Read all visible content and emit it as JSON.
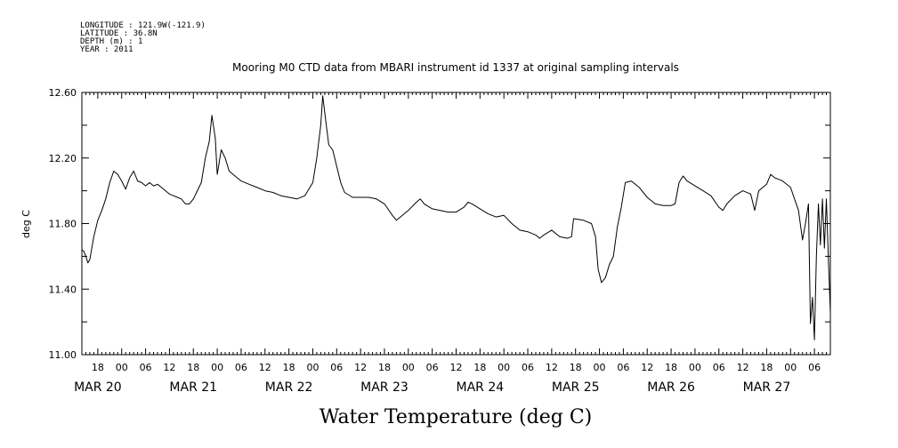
{
  "metadata": {
    "longitude": "LONGITUDE : 121.9W(-121.9)",
    "latitude": "LATITUDE : 36.8N",
    "depth": "DEPTH (m) : 1",
    "year": "YEAR : 2011"
  },
  "chart_data": {
    "type": "line",
    "title": "Mooring M0 CTD data from MBARI instrument id 1337 at original sampling intervals",
    "xlabel": "Water Temperature (deg C)",
    "ylabel": "deg C",
    "ylim": [
      11.0,
      12.6
    ],
    "yticks": [
      "11.00",
      "11.40",
      "11.80",
      "12.20",
      "12.60"
    ],
    "xlim": [
      "2011-03-19T14:00",
      "2011-03-27T10:00"
    ],
    "hour_ticks": [
      {
        "t": "2011-03-19T18:00",
        "label": "18"
      },
      {
        "t": "2011-03-20T00:00",
        "label": "00"
      },
      {
        "t": "2011-03-20T06:00",
        "label": "06"
      },
      {
        "t": "2011-03-20T12:00",
        "label": "12"
      },
      {
        "t": "2011-03-20T18:00",
        "label": "18"
      },
      {
        "t": "2011-03-21T00:00",
        "label": "00"
      },
      {
        "t": "2011-03-21T06:00",
        "label": "06"
      },
      {
        "t": "2011-03-21T12:00",
        "label": "12"
      },
      {
        "t": "2011-03-21T18:00",
        "label": "18"
      },
      {
        "t": "2011-03-22T00:00",
        "label": "00"
      },
      {
        "t": "2011-03-22T06:00",
        "label": "06"
      },
      {
        "t": "2011-03-22T12:00",
        "label": "12"
      },
      {
        "t": "2011-03-22T18:00",
        "label": "18"
      },
      {
        "t": "2011-03-23T00:00",
        "label": "00"
      },
      {
        "t": "2011-03-23T06:00",
        "label": "06"
      },
      {
        "t": "2011-03-23T12:00",
        "label": "12"
      },
      {
        "t": "2011-03-23T18:00",
        "label": "18"
      },
      {
        "t": "2011-03-24T00:00",
        "label": "00"
      },
      {
        "t": "2011-03-24T06:00",
        "label": "06"
      },
      {
        "t": "2011-03-24T12:00",
        "label": "12"
      },
      {
        "t": "2011-03-24T18:00",
        "label": "18"
      },
      {
        "t": "2011-03-25T00:00",
        "label": "00"
      },
      {
        "t": "2011-03-25T06:00",
        "label": "06"
      },
      {
        "t": "2011-03-25T12:00",
        "label": "12"
      },
      {
        "t": "2011-03-25T18:00",
        "label": "18"
      },
      {
        "t": "2011-03-26T00:00",
        "label": "00"
      },
      {
        "t": "2011-03-26T06:00",
        "label": "06"
      },
      {
        "t": "2011-03-26T12:00",
        "label": "12"
      },
      {
        "t": "2011-03-26T18:00",
        "label": "18"
      },
      {
        "t": "2011-03-27T00:00",
        "label": "00"
      },
      {
        "t": "2011-03-27T06:00",
        "label": "06"
      }
    ],
    "day_labels": [
      {
        "t": "2011-03-19T18:00",
        "label": "MAR 20"
      },
      {
        "t": "2011-03-20T18:00",
        "label": "MAR 21"
      },
      {
        "t": "2011-03-21T18:00",
        "label": "MAR 22"
      },
      {
        "t": "2011-03-22T18:00",
        "label": "MAR 23"
      },
      {
        "t": "2011-03-23T18:00",
        "label": "MAR 24"
      },
      {
        "t": "2011-03-24T18:00",
        "label": "MAR 25"
      },
      {
        "t": "2011-03-25T18:00",
        "label": "MAR 26"
      },
      {
        "t": "2011-03-26T18:00",
        "label": "MAR 27"
      }
    ],
    "series": [
      {
        "color": "#000000",
        "points": [
          [
            "2011-03-19T14:00",
            11.64
          ],
          [
            "2011-03-19T14:30",
            11.63
          ],
          [
            "2011-03-19T15:00",
            11.6
          ],
          [
            "2011-03-19T15:30",
            11.56
          ],
          [
            "2011-03-19T16:00",
            11.58
          ],
          [
            "2011-03-19T17:00",
            11.72
          ],
          [
            "2011-03-19T18:00",
            11.82
          ],
          [
            "2011-03-19T19:00",
            11.88
          ],
          [
            "2011-03-19T20:00",
            11.95
          ],
          [
            "2011-03-19T21:00",
            12.05
          ],
          [
            "2011-03-19T22:00",
            12.12
          ],
          [
            "2011-03-19T23:00",
            12.1
          ],
          [
            "2011-03-20T00:00",
            12.06
          ],
          [
            "2011-03-20T01:00",
            12.01
          ],
          [
            "2011-03-20T02:00",
            12.08
          ],
          [
            "2011-03-20T03:00",
            12.12
          ],
          [
            "2011-03-20T04:00",
            12.06
          ],
          [
            "2011-03-20T05:00",
            12.05
          ],
          [
            "2011-03-20T06:00",
            12.03
          ],
          [
            "2011-03-20T07:00",
            12.05
          ],
          [
            "2011-03-20T08:00",
            12.03
          ],
          [
            "2011-03-20T09:00",
            12.04
          ],
          [
            "2011-03-20T10:00",
            12.02
          ],
          [
            "2011-03-20T11:00",
            12.0
          ],
          [
            "2011-03-20T12:00",
            11.98
          ],
          [
            "2011-03-20T13:00",
            11.97
          ],
          [
            "2011-03-20T14:00",
            11.96
          ],
          [
            "2011-03-20T15:00",
            11.95
          ],
          [
            "2011-03-20T16:00",
            11.92
          ],
          [
            "2011-03-20T17:00",
            11.92
          ],
          [
            "2011-03-20T18:00",
            11.95
          ],
          [
            "2011-03-20T19:00",
            12.0
          ],
          [
            "2011-03-20T20:00",
            12.05
          ],
          [
            "2011-03-20T21:00",
            12.2
          ],
          [
            "2011-03-20T22:00",
            12.3
          ],
          [
            "2011-03-20T22:40",
            12.46
          ],
          [
            "2011-03-20T23:30",
            12.32
          ],
          [
            "2011-03-21T00:00",
            12.1
          ],
          [
            "2011-03-21T01:00",
            12.25
          ],
          [
            "2011-03-21T02:00",
            12.2
          ],
          [
            "2011-03-21T03:00",
            12.12
          ],
          [
            "2011-03-21T04:00",
            12.1
          ],
          [
            "2011-03-21T06:00",
            12.06
          ],
          [
            "2011-03-21T08:00",
            12.04
          ],
          [
            "2011-03-21T10:00",
            12.02
          ],
          [
            "2011-03-21T12:00",
            12.0
          ],
          [
            "2011-03-21T14:00",
            11.99
          ],
          [
            "2011-03-21T16:00",
            11.97
          ],
          [
            "2011-03-21T18:00",
            11.96
          ],
          [
            "2011-03-21T20:00",
            11.95
          ],
          [
            "2011-03-21T22:00",
            11.97
          ],
          [
            "2011-03-22T00:00",
            12.05
          ],
          [
            "2011-03-22T01:00",
            12.2
          ],
          [
            "2011-03-22T02:00",
            12.4
          ],
          [
            "2011-03-22T02:30",
            12.58
          ],
          [
            "2011-03-22T03:30",
            12.38
          ],
          [
            "2011-03-22T04:00",
            12.28
          ],
          [
            "2011-03-22T05:00",
            12.25
          ],
          [
            "2011-03-22T06:00",
            12.15
          ],
          [
            "2011-03-22T07:00",
            12.05
          ],
          [
            "2011-03-22T08:00",
            11.99
          ],
          [
            "2011-03-22T10:00",
            11.96
          ],
          [
            "2011-03-22T12:00",
            11.96
          ],
          [
            "2011-03-22T14:00",
            11.96
          ],
          [
            "2011-03-22T16:00",
            11.95
          ],
          [
            "2011-03-22T18:00",
            11.92
          ],
          [
            "2011-03-22T20:00",
            11.85
          ],
          [
            "2011-03-22T21:00",
            11.82
          ],
          [
            "2011-03-22T22:00",
            11.84
          ],
          [
            "2011-03-23T00:00",
            11.88
          ],
          [
            "2011-03-23T02:00",
            11.93
          ],
          [
            "2011-03-23T03:00",
            11.95
          ],
          [
            "2011-03-23T04:00",
            11.92
          ],
          [
            "2011-03-23T06:00",
            11.89
          ],
          [
            "2011-03-23T08:00",
            11.88
          ],
          [
            "2011-03-23T10:00",
            11.87
          ],
          [
            "2011-03-23T12:00",
            11.87
          ],
          [
            "2011-03-23T14:00",
            11.9
          ],
          [
            "2011-03-23T15:00",
            11.93
          ],
          [
            "2011-03-23T16:00",
            11.92
          ],
          [
            "2011-03-23T18:00",
            11.89
          ],
          [
            "2011-03-23T20:00",
            11.86
          ],
          [
            "2011-03-23T22:00",
            11.84
          ],
          [
            "2011-03-24T00:00",
            11.85
          ],
          [
            "2011-03-24T02:00",
            11.8
          ],
          [
            "2011-03-24T04:00",
            11.76
          ],
          [
            "2011-03-24T06:00",
            11.75
          ],
          [
            "2011-03-24T08:00",
            11.73
          ],
          [
            "2011-03-24T09:00",
            11.71
          ],
          [
            "2011-03-24T10:00",
            11.73
          ],
          [
            "2011-03-24T12:00",
            11.76
          ],
          [
            "2011-03-24T14:00",
            11.72
          ],
          [
            "2011-03-24T16:00",
            11.71
          ],
          [
            "2011-03-24T17:00",
            11.72
          ],
          [
            "2011-03-24T17:30",
            11.83
          ],
          [
            "2011-03-24T20:00",
            11.82
          ],
          [
            "2011-03-24T22:00",
            11.8
          ],
          [
            "2011-03-24T23:00",
            11.72
          ],
          [
            "2011-03-24T23:40",
            11.52
          ],
          [
            "2011-03-25T00:30",
            11.44
          ],
          [
            "2011-03-25T01:30",
            11.47
          ],
          [
            "2011-03-25T02:30",
            11.55
          ],
          [
            "2011-03-25T03:30",
            11.6
          ],
          [
            "2011-03-25T04:30",
            11.78
          ],
          [
            "2011-03-25T05:30",
            11.9
          ],
          [
            "2011-03-25T06:30",
            12.05
          ],
          [
            "2011-03-25T08:00",
            12.06
          ],
          [
            "2011-03-25T10:00",
            12.02
          ],
          [
            "2011-03-25T12:00",
            11.96
          ],
          [
            "2011-03-25T14:00",
            11.92
          ],
          [
            "2011-03-25T16:00",
            11.91
          ],
          [
            "2011-03-25T18:00",
            11.91
          ],
          [
            "2011-03-25T19:00",
            11.92
          ],
          [
            "2011-03-25T20:00",
            12.05
          ],
          [
            "2011-03-25T21:00",
            12.09
          ],
          [
            "2011-03-25T22:00",
            12.06
          ],
          [
            "2011-03-26T00:00",
            12.03
          ],
          [
            "2011-03-26T02:00",
            12.0
          ],
          [
            "2011-03-26T04:00",
            11.97
          ],
          [
            "2011-03-26T06:00",
            11.9
          ],
          [
            "2011-03-26T07:00",
            11.88
          ],
          [
            "2011-03-26T08:00",
            11.92
          ],
          [
            "2011-03-26T10:00",
            11.97
          ],
          [
            "2011-03-26T12:00",
            12.0
          ],
          [
            "2011-03-26T14:00",
            11.98
          ],
          [
            "2011-03-26T15:00",
            11.88
          ],
          [
            "2011-03-26T16:00",
            12.0
          ],
          [
            "2011-03-26T18:00",
            12.04
          ],
          [
            "2011-03-26T19:00",
            12.1
          ],
          [
            "2011-03-26T20:00",
            12.08
          ],
          [
            "2011-03-26T22:00",
            12.06
          ],
          [
            "2011-03-27T00:00",
            12.02
          ],
          [
            "2011-03-27T01:00",
            11.95
          ],
          [
            "2011-03-27T02:00",
            11.88
          ],
          [
            "2011-03-27T03:00",
            11.7
          ],
          [
            "2011-03-27T03:45",
            11.8
          ],
          [
            "2011-03-27T04:30",
            11.92
          ],
          [
            "2011-03-27T05:00",
            11.19
          ],
          [
            "2011-03-27T05:30",
            11.35
          ],
          [
            "2011-03-27T06:00",
            11.09
          ],
          [
            "2011-03-27T06:30",
            11.6
          ],
          [
            "2011-03-27T07:00",
            11.92
          ],
          [
            "2011-03-27T07:30",
            11.67
          ],
          [
            "2011-03-27T08:00",
            11.95
          ],
          [
            "2011-03-27T08:30",
            11.65
          ],
          [
            "2011-03-27T09:00",
            11.95
          ],
          [
            "2011-03-27T09:30",
            11.58
          ],
          [
            "2011-03-27T10:00",
            11.26
          ]
        ]
      }
    ]
  }
}
